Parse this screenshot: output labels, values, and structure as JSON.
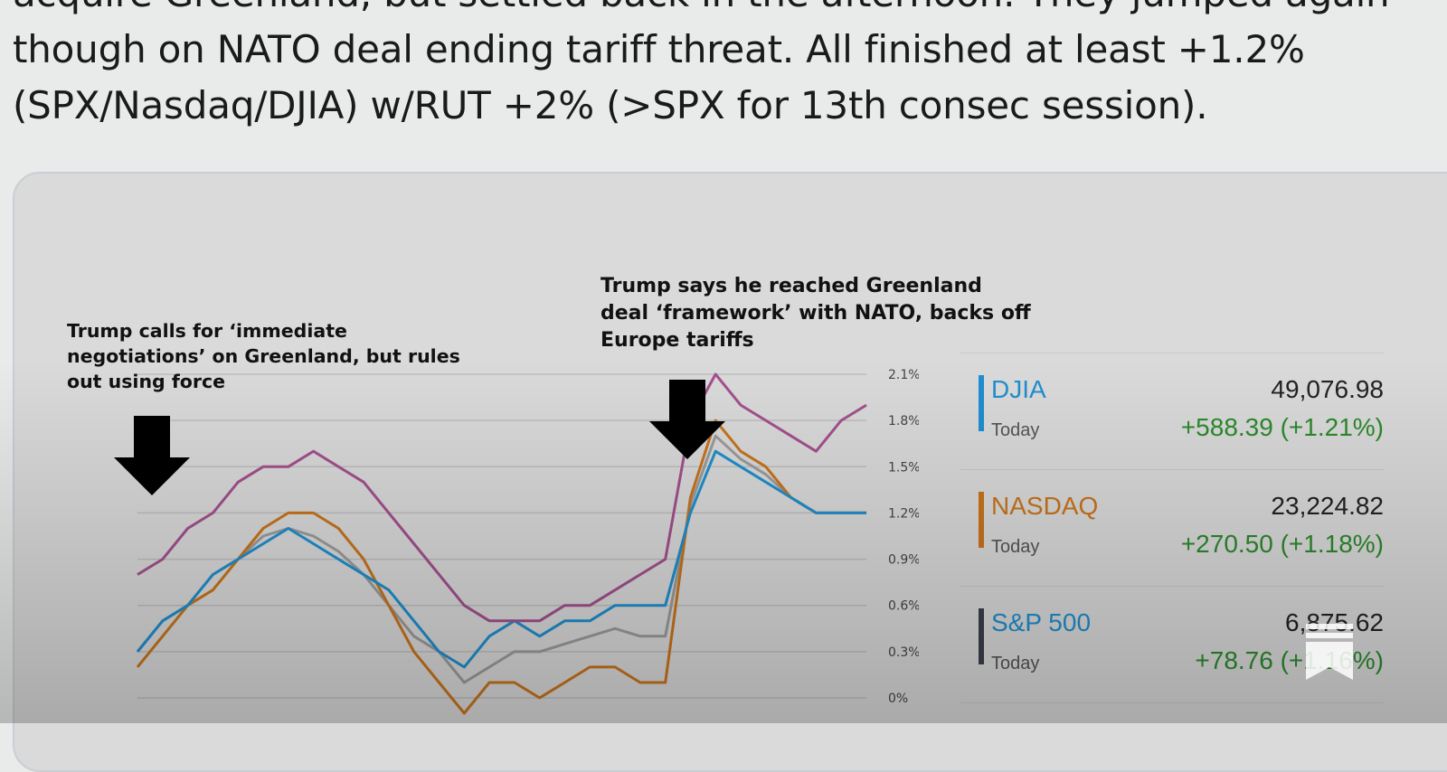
{
  "post": {
    "lines": [
      "acquire Greenland, but settled back in the afternoon. They jumped again",
      "though on NATO deal ending tariff threat. All finished at least +1.2%",
      "(SPX/Nasdaq/DJIA) w/RUT +2% (>SPX for 13th consec session)."
    ]
  },
  "chart": {
    "annotation_left": [
      "Trump calls for ‘immediate",
      "negotiations’ on Greenland, but rules",
      "out using force"
    ],
    "annotation_right": [
      "Trump says he reached Greenland",
      "deal ‘framework’ with NATO, backs off",
      "Europe tariffs"
    ]
  },
  "tickers": [
    {
      "name": "DJIA",
      "today": "Today",
      "price": "49,076.98",
      "change": "+588.39 (+1.21%)",
      "color": "#1f8fd0"
    },
    {
      "name": "NASDAQ",
      "today": "Today",
      "price": "23,224.82",
      "change": "+270.50 (+1.18%)",
      "color": "#c9741c"
    },
    {
      "name": "S&P 500",
      "today": "Today",
      "price": "6,875.62",
      "change": "+78.76 (+1.16%)",
      "color": "#3a3f4a"
    }
  ],
  "chart_data": {
    "type": "line",
    "y_tick_labels": [
      "2.1%",
      "1.8%",
      "1.5%",
      "1.2%",
      "0.9%",
      "0.6%",
      "0.3%",
      "0%"
    ],
    "ylim": [
      0,
      2.1
    ],
    "grid": true,
    "series": [
      {
        "color": "#a4508f",
        "values": [
          0.8,
          0.9,
          1.1,
          1.2,
          1.4,
          1.5,
          1.5,
          1.6,
          1.5,
          1.4,
          1.2,
          1.0,
          0.8,
          0.6,
          0.5,
          0.5,
          0.5,
          0.6,
          0.6,
          0.7,
          0.8,
          0.9,
          1.8,
          2.1,
          1.9,
          1.8,
          1.7,
          1.6,
          1.8,
          1.9
        ]
      },
      {
        "color": "#1f8fd0",
        "values": [
          0.3,
          0.5,
          0.6,
          0.8,
          0.9,
          1.0,
          1.1,
          1.0,
          0.9,
          0.8,
          0.7,
          0.5,
          0.3,
          0.2,
          0.4,
          0.5,
          0.4,
          0.5,
          0.5,
          0.6,
          0.6,
          0.6,
          1.2,
          1.6,
          1.5,
          1.4,
          1.3,
          1.2,
          1.2,
          1.2
        ]
      },
      {
        "color": "#c9741c",
        "values": [
          0.2,
          0.4,
          0.6,
          0.7,
          0.9,
          1.1,
          1.2,
          1.2,
          1.1,
          0.9,
          0.6,
          0.3,
          0.1,
          -0.1,
          0.1,
          0.1,
          0.0,
          0.1,
          0.2,
          0.2,
          0.1,
          0.1,
          1.3,
          1.8,
          1.6,
          1.5,
          1.3,
          1.2,
          1.2,
          1.2
        ]
      },
      {
        "color": "#9c9c9c",
        "values": [
          0.3,
          0.5,
          0.6,
          0.8,
          0.9,
          1.05,
          1.1,
          1.05,
          0.95,
          0.8,
          0.6,
          0.4,
          0.3,
          0.1,
          0.2,
          0.3,
          0.3,
          0.35,
          0.4,
          0.45,
          0.4,
          0.4,
          1.25,
          1.7,
          1.55,
          1.45,
          1.3,
          1.2,
          1.2,
          1.2
        ]
      }
    ]
  }
}
